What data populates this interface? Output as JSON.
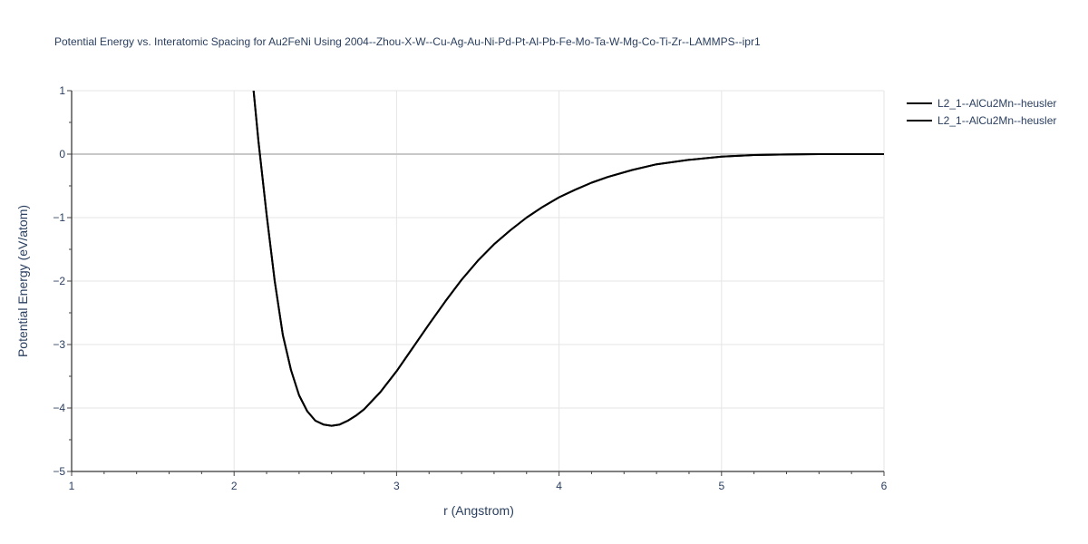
{
  "chart_data": {
    "type": "line",
    "title": "Potential Energy vs. Interatomic Spacing for Au2FeNi Using 2004--Zhou-X-W--Cu-Ag-Au-Ni-Pd-Pt-Al-Pb-Fe-Mo-Ta-W-Mg-Co-Ti-Zr--LAMMPS--ipr1",
    "xlabel": "r (Angstrom)",
    "ylabel": "Potential Energy (eV/atom)",
    "xlim": [
      1,
      6
    ],
    "ylim": [
      -5,
      1
    ],
    "x_ticks": [
      1,
      2,
      3,
      4,
      5,
      6
    ],
    "x_tick_labels": [
      "1",
      "2",
      "3",
      "4",
      "5",
      "6"
    ],
    "y_ticks": [
      1,
      0,
      -1,
      -2,
      -3,
      -4,
      -5
    ],
    "y_tick_labels": [
      "1",
      "0",
      "−1",
      "−2",
      "−3",
      "−4",
      "−5"
    ],
    "grid": true,
    "legend_position": "top-right",
    "series_color": "#000000",
    "series": [
      {
        "name": "L2_1--AlCu2Mn--heusler",
        "x": [
          2.12,
          2.15,
          2.2,
          2.25,
          2.3,
          2.35,
          2.4,
          2.45,
          2.5,
          2.55,
          2.6,
          2.65,
          2.7,
          2.75,
          2.8,
          2.9,
          3.0,
          3.1,
          3.2,
          3.3,
          3.4,
          3.5,
          3.6,
          3.7,
          3.8,
          3.9,
          4.0,
          4.1,
          4.2,
          4.3,
          4.45,
          4.6,
          4.8,
          5.0,
          5.2,
          5.4,
          5.6,
          5.8,
          6.0
        ],
        "y": [
          1.0,
          0.2,
          -0.95,
          -2.0,
          -2.85,
          -3.4,
          -3.8,
          -4.05,
          -4.2,
          -4.26,
          -4.28,
          -4.26,
          -4.2,
          -4.12,
          -4.02,
          -3.75,
          -3.42,
          -3.05,
          -2.68,
          -2.32,
          -1.98,
          -1.68,
          -1.42,
          -1.2,
          -1.0,
          -0.83,
          -0.68,
          -0.56,
          -0.45,
          -0.36,
          -0.25,
          -0.16,
          -0.09,
          -0.04,
          -0.015,
          -0.005,
          0.0,
          0.0,
          0.0
        ]
      },
      {
        "name": "L2_1--AlCu2Mn--heusler",
        "x": [
          2.12,
          2.15,
          2.2,
          2.25,
          2.3,
          2.35,
          2.4,
          2.45,
          2.5,
          2.55,
          2.6,
          2.65,
          2.7,
          2.75,
          2.8,
          2.9,
          3.0,
          3.1,
          3.2,
          3.3,
          3.4,
          3.5,
          3.6,
          3.7,
          3.8,
          3.9,
          4.0,
          4.1,
          4.2,
          4.3,
          4.45,
          4.6,
          4.8,
          5.0,
          5.2,
          5.4,
          5.6,
          5.8,
          6.0
        ],
        "y": [
          1.0,
          0.2,
          -0.95,
          -2.0,
          -2.85,
          -3.4,
          -3.8,
          -4.05,
          -4.2,
          -4.26,
          -4.28,
          -4.26,
          -4.2,
          -4.12,
          -4.02,
          -3.75,
          -3.42,
          -3.05,
          -2.68,
          -2.32,
          -1.98,
          -1.68,
          -1.42,
          -1.2,
          -1.0,
          -0.83,
          -0.68,
          -0.56,
          -0.45,
          -0.36,
          -0.25,
          -0.16,
          -0.09,
          -0.04,
          -0.015,
          -0.005,
          0.0,
          0.0,
          0.0
        ]
      }
    ]
  }
}
